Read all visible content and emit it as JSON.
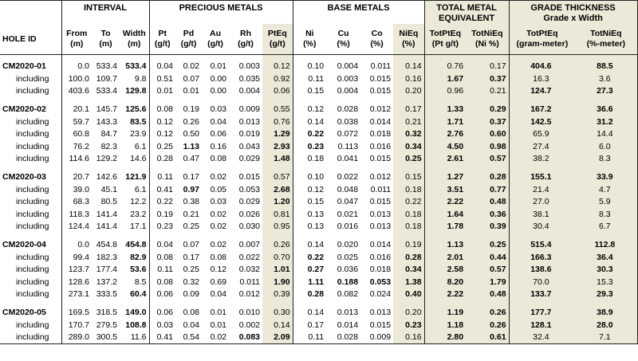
{
  "groups": {
    "interval": "INTERVAL",
    "precious": "PRECIOUS METALS",
    "base": "BASE METALS",
    "total": "TOTAL METAL EQUIVALENT",
    "grade": "GRADE THICKNESS",
    "grade_sub": "Grade x Width"
  },
  "columns": [
    {
      "l1": "HOLE ID",
      "l2": ""
    },
    {
      "l1": "From",
      "l2": "(m)"
    },
    {
      "l1": "To",
      "l2": "(m)"
    },
    {
      "l1": "Width",
      "l2": "(m)"
    },
    {
      "l1": "Pt",
      "l2": "(g/t)"
    },
    {
      "l1": "Pd",
      "l2": "(g/t)"
    },
    {
      "l1": "Au",
      "l2": "(g/t)"
    },
    {
      "l1": "Rh",
      "l2": "(g/t)"
    },
    {
      "l1": "PtEq",
      "l2": "(g/t)"
    },
    {
      "l1": "Ni",
      "l2": "(%)"
    },
    {
      "l1": "Cu",
      "l2": "(%)"
    },
    {
      "l1": "Co",
      "l2": "(%)"
    },
    {
      "l1": "NiEq",
      "l2": "(%)"
    },
    {
      "l1": "TotPtEq",
      "l2": "(Pt g/t)"
    },
    {
      "l1": "TotNiEq",
      "l2": "(Ni %)"
    },
    {
      "l1": "TotPtEq",
      "l2": "(gram-meter)"
    },
    {
      "l1": "TotNiEq",
      "l2": "(%-meter)"
    }
  ],
  "rows": [
    {
      "type": "main",
      "v": [
        "CM2020-01",
        "0.0",
        "533.4",
        "533.4",
        "0.04",
        "0.02",
        "0.01",
        "0.003",
        "0.12",
        "0.10",
        "0.004",
        "0.011",
        "0.14",
        "0.76",
        "0.17",
        "404.6",
        "88.5"
      ],
      "b": [
        3,
        15,
        16
      ],
      "u": []
    },
    {
      "type": "sub",
      "v": [
        "including",
        "100.0",
        "109.7",
        "9.8",
        "0.51",
        "0.07",
        "0.00",
        "0.035",
        "0.92",
        "0.11",
        "0.003",
        "0.015",
        "0.16",
        "1.67",
        "0.37",
        "16.3",
        "3.6"
      ],
      "b": [
        13,
        14
      ],
      "u": []
    },
    {
      "type": "sub",
      "v": [
        "including",
        "403.6",
        "533.4",
        "129.8",
        "0.01",
        "0.01",
        "0.00",
        "0.004",
        "0.06",
        "0.15",
        "0.004",
        "0.015",
        "0.20",
        "0.96",
        "0.21",
        "124.7",
        "27.3"
      ],
      "b": [
        3,
        15,
        16
      ],
      "u": []
    },
    {
      "type": "main",
      "v": [
        "CM2020-02",
        "20.1",
        "145.7",
        "125.6",
        "0.08",
        "0.19",
        "0.03",
        "0.009",
        "0.55",
        "0.12",
        "0.028",
        "0.012",
        "0.17",
        "1.33",
        "0.29",
        "167.2",
        "36.6"
      ],
      "b": [
        3,
        13,
        14,
        15,
        16
      ],
      "u": []
    },
    {
      "type": "sub",
      "v": [
        "including",
        "59.7",
        "143.3",
        "83.5",
        "0.12",
        "0.26",
        "0.04",
        "0.013",
        "0.76",
        "0.14",
        "0.038",
        "0.014",
        "0.21",
        "1.71",
        "0.37",
        "142.5",
        "31.2"
      ],
      "b": [
        3,
        13,
        14,
        15,
        16
      ],
      "u": []
    },
    {
      "type": "sub",
      "v": [
        "including",
        "60.8",
        "84.7",
        "23.9",
        "0.12",
        "0.50",
        "0.06",
        "0.019",
        "1.29",
        "0.22",
        "0.072",
        "0.018",
        "0.32",
        "2.76",
        "0.60",
        "65.9",
        "14.4"
      ],
      "b": [
        8,
        9,
        12,
        13,
        14
      ],
      "u": []
    },
    {
      "type": "sub",
      "v": [
        "including",
        "76.2",
        "82.3",
        "6.1",
        "0.25",
        "1.13",
        "0.16",
        "0.043",
        "2.93",
        "0.23",
        "0.113",
        "0.016",
        "0.34",
        "4.50",
        "0.98",
        "27.4",
        "6.0"
      ],
      "b": [
        5,
        8,
        9,
        12,
        13,
        14
      ],
      "u": []
    },
    {
      "type": "sub",
      "v": [
        "including",
        "114.6",
        "129.2",
        "14.6",
        "0.28",
        "0.47",
        "0.08",
        "0.029",
        "1.48",
        "0.18",
        "0.041",
        "0.015",
        "0.25",
        "2.61",
        "0.57",
        "38.2",
        "8.3"
      ],
      "b": [
        8,
        12,
        13,
        14
      ],
      "u": []
    },
    {
      "type": "main",
      "v": [
        "CM2020-03",
        "20.7",
        "142.6",
        "121.9",
        "0.11",
        "0.17",
        "0.02",
        "0.015",
        "0.57",
        "0.10",
        "0.022",
        "0.012",
        "0.15",
        "1.27",
        "0.28",
        "155.1",
        "33.9"
      ],
      "b": [
        3,
        13,
        14,
        15,
        16
      ],
      "u": []
    },
    {
      "type": "sub",
      "v": [
        "including",
        "39.0",
        "45.1",
        "6.1",
        "0.41",
        "0.97",
        "0.05",
        "0.053",
        "2.68",
        "0.12",
        "0.048",
        "0.011",
        "0.18",
        "3.51",
        "0.77",
        "21.4",
        "4.7"
      ],
      "b": [
        5,
        8,
        13,
        14
      ],
      "u": []
    },
    {
      "type": "sub",
      "v": [
        "including",
        "68.3",
        "80.5",
        "12.2",
        "0.22",
        "0.38",
        "0.03",
        "0.029",
        "1.20",
        "0.15",
        "0.047",
        "0.015",
        "0.22",
        "2.22",
        "0.48",
        "27.0",
        "5.9"
      ],
      "b": [
        8,
        13,
        14
      ],
      "u": []
    },
    {
      "type": "sub",
      "v": [
        "including",
        "118.3",
        "141.4",
        "23.2",
        "0.19",
        "0.21",
        "0.02",
        "0.026",
        "0.81",
        "0.13",
        "0.021",
        "0.013",
        "0.18",
        "1.64",
        "0.36",
        "38.1",
        "8.3"
      ],
      "b": [
        13,
        14
      ],
      "u": []
    },
    {
      "type": "sub",
      "v": [
        "including",
        "124.4",
        "141.4",
        "17.1",
        "0.23",
        "0.25",
        "0.02",
        "0.030",
        "0.95",
        "0.13",
        "0.016",
        "0.013",
        "0.18",
        "1.78",
        "0.39",
        "30.4",
        "6.7"
      ],
      "b": [
        13,
        14
      ],
      "u": []
    },
    {
      "type": "main",
      "v": [
        "CM2020-04",
        "0.0",
        "454.8",
        "454.8",
        "0.04",
        "0.07",
        "0.02",
        "0.007",
        "0.26",
        "0.14",
        "0.020",
        "0.014",
        "0.19",
        "1.13",
        "0.25",
        "515.4",
        "112.8"
      ],
      "b": [
        3,
        13,
        14,
        15,
        16
      ],
      "u": []
    },
    {
      "type": "sub",
      "v": [
        "including",
        "99.4",
        "182.3",
        "82.9",
        "0.08",
        "0.17",
        "0.08",
        "0.022",
        "0.70",
        "0.22",
        "0.025",
        "0.016",
        "0.28",
        "2.01",
        "0.44",
        "166.3",
        "36.4"
      ],
      "b": [
        3,
        9,
        12,
        13,
        14,
        15,
        16
      ],
      "u": []
    },
    {
      "type": "sub",
      "v": [
        "including",
        "123.7",
        "177.4",
        "53.6",
        "0.11",
        "0.25",
        "0.12",
        "0.032",
        "1.01",
        "0.27",
        "0.036",
        "0.018",
        "0.34",
        "2.58",
        "0.57",
        "138.6",
        "30.3"
      ],
      "b": [
        3,
        8,
        9,
        12,
        13,
        14,
        15,
        16
      ],
      "u": []
    },
    {
      "type": "sub",
      "v": [
        "including",
        "128.6",
        "137.2",
        "8.5",
        "0.08",
        "0.32",
        "0.69",
        "0.011",
        "1.90",
        "1.11",
        "0.188",
        "0.053",
        "1.38",
        "8.20",
        "1.79",
        "70.0",
        "15.3"
      ],
      "b": [
        8,
        9,
        10,
        11,
        12,
        13,
        14
      ],
      "u": []
    },
    {
      "type": "sub",
      "v": [
        "including",
        "273.1",
        "333.5",
        "60.4",
        "0.06",
        "0.09",
        "0.04",
        "0.012",
        "0.39",
        "0.28",
        "0.082",
        "0.024",
        "0.40",
        "2.22",
        "0.48",
        "133.7",
        "29.3"
      ],
      "b": [
        3,
        9,
        12,
        13,
        14,
        15,
        16
      ],
      "u": []
    },
    {
      "type": "main",
      "v": [
        "CM2020-05",
        "169.5",
        "318.5",
        "149.0",
        "0.06",
        "0.08",
        "0.01",
        "0.010",
        "0.30",
        "0.14",
        "0.013",
        "0.013",
        "0.20",
        "1.19",
        "0.26",
        "177.7",
        "38.9"
      ],
      "b": [
        3,
        13,
        14,
        15,
        16
      ],
      "u": []
    },
    {
      "type": "sub",
      "v": [
        "including",
        "170.7",
        "279.5",
        "108.8",
        "0.03",
        "0.04",
        "0.01",
        "0.002",
        "0.14",
        "0.17",
        "0.014",
        "0.015",
        "0.23",
        "1.18",
        "0.26",
        "128.1",
        "28.0"
      ],
      "b": [
        3,
        12,
        13,
        14,
        15,
        16
      ],
      "u": []
    },
    {
      "type": "sub",
      "v": [
        "including",
        "289.0",
        "300.5",
        "11.6",
        "0.41",
        "0.54",
        "0.02",
        "0.083",
        "2.09",
        "0.11",
        "0.028",
        "0.009",
        "0.16",
        "2.80",
        "0.61",
        "32.4",
        "7.1"
      ],
      "b": [
        7,
        8,
        13,
        14
      ],
      "u": []
    }
  ],
  "shaded_columns": [
    8,
    12,
    13,
    14,
    15,
    16
  ],
  "group_breaks_after": [
    2,
    7,
    12,
    17
  ]
}
